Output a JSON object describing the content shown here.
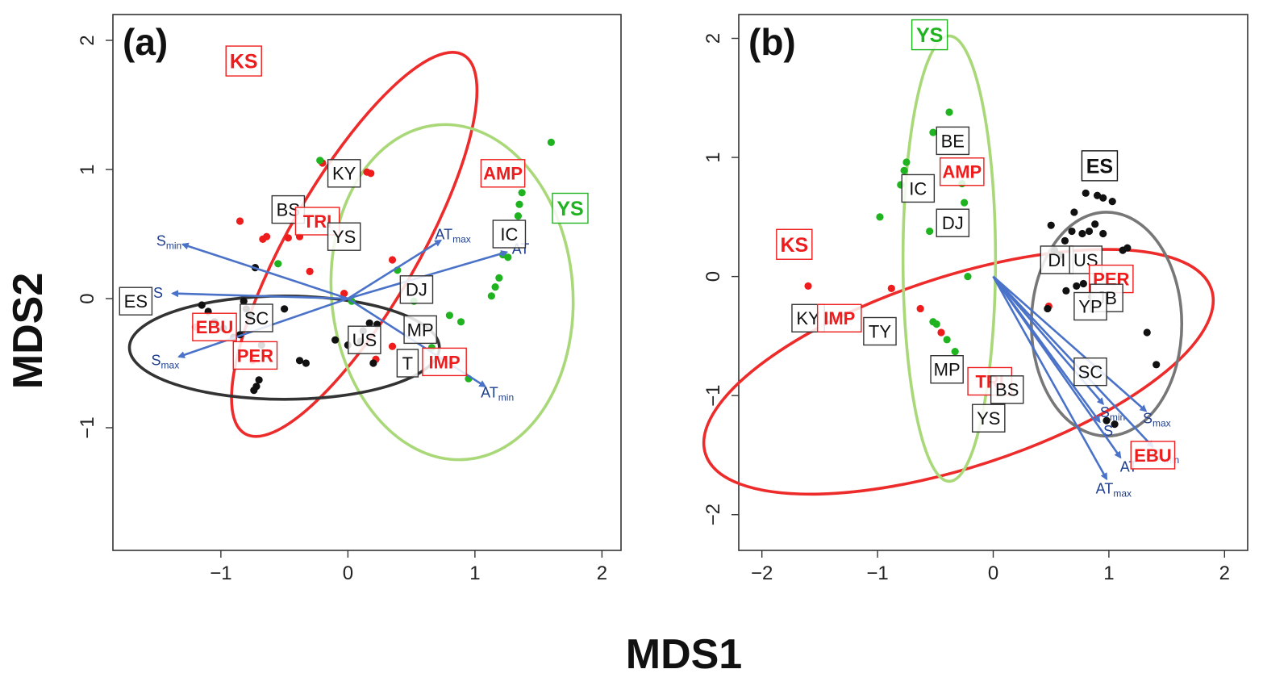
{
  "figure": {
    "xlabel": "MDS1",
    "ylabel": "MDS2"
  },
  "colors": {
    "site": "#111111",
    "fish": "#ee1c1c",
    "red_group": "#ee1c1c",
    "green_group": "#1fb31f",
    "black_group": "#111111",
    "ellipse_red": "#ee2b2b",
    "ellipse_green": "#a9d878",
    "ellipse_black": "#333333",
    "ellipse_gray": "#777777",
    "vector": "#4a72c8",
    "vector_text": "#1f3f8f"
  },
  "chart_data": [
    {
      "type": "scatter",
      "tag": "(a)",
      "xlim": [
        -1.85,
        2.15
      ],
      "ylim": [
        -1.95,
        2.2
      ],
      "xticks": [
        -1,
        0,
        1,
        2
      ],
      "yticks": [
        -1,
        0,
        1,
        2
      ],
      "xtick_labels": [
        "−1",
        "0",
        "1",
        "2"
      ],
      "ytick_labels": [
        "−1",
        "0",
        "1",
        "2"
      ],
      "ellipses": [
        {
          "name": "KS",
          "color": "ellipse_red",
          "cx": 0.05,
          "cy": 0.42,
          "rx": 1.72,
          "ry": 0.5,
          "angle_deg": -60
        },
        {
          "name": "YS",
          "color": "ellipse_green",
          "cx": 0.82,
          "cy": 0.05,
          "rx": 0.95,
          "ry": 1.3,
          "angle_deg": -5
        },
        {
          "name": "ES",
          "color": "ellipse_black",
          "cx": -0.5,
          "cy": -0.38,
          "rx": 1.22,
          "ry": 0.4,
          "angle_deg": 0
        }
      ],
      "points": [
        {
          "x": -0.85,
          "y": 0.6,
          "g": "red"
        },
        {
          "x": -0.67,
          "y": 0.46,
          "g": "red"
        },
        {
          "x": -0.64,
          "y": 0.48,
          "g": "red"
        },
        {
          "x": -0.47,
          "y": 0.47,
          "g": "red"
        },
        {
          "x": -0.38,
          "y": 0.48,
          "g": "red"
        },
        {
          "x": -0.3,
          "y": 0.21,
          "g": "red"
        },
        {
          "x": -0.2,
          "y": 1.05,
          "g": "red"
        },
        {
          "x": 0.15,
          "y": 0.98,
          "g": "red"
        },
        {
          "x": 0.18,
          "y": 0.97,
          "g": "red"
        },
        {
          "x": 0.35,
          "y": 0.3,
          "g": "red"
        },
        {
          "x": -0.03,
          "y": 0.04,
          "g": "red"
        },
        {
          "x": 0.35,
          "y": -0.37,
          "g": "red"
        },
        {
          "x": 0.22,
          "y": -0.47,
          "g": "red"
        },
        {
          "x": -1.2,
          "y": -0.22,
          "g": "red"
        },
        {
          "x": -0.75,
          "y": -0.48,
          "g": "red"
        },
        {
          "x": -0.22,
          "y": 1.07,
          "g": "green"
        },
        {
          "x": -0.55,
          "y": 0.27,
          "g": "green"
        },
        {
          "x": 0.03,
          "y": -0.02,
          "g": "green"
        },
        {
          "x": 0.39,
          "y": 0.22,
          "g": "green"
        },
        {
          "x": 0.52,
          "y": -0.02,
          "g": "green"
        },
        {
          "x": 0.66,
          "y": -0.38,
          "g": "green"
        },
        {
          "x": 0.8,
          "y": -0.13,
          "g": "green"
        },
        {
          "x": 0.89,
          "y": -0.18,
          "g": "green"
        },
        {
          "x": 0.95,
          "y": -0.62,
          "g": "green"
        },
        {
          "x": 1.13,
          "y": 0.02,
          "g": "green"
        },
        {
          "x": 1.16,
          "y": 0.09,
          "g": "green"
        },
        {
          "x": 1.19,
          "y": 0.16,
          "g": "green"
        },
        {
          "x": 1.22,
          "y": 0.34,
          "g": "green"
        },
        {
          "x": 1.26,
          "y": 0.32,
          "g": "green"
        },
        {
          "x": 1.34,
          "y": 0.64,
          "g": "green"
        },
        {
          "x": 1.35,
          "y": 0.73,
          "g": "green"
        },
        {
          "x": 1.37,
          "y": 0.82,
          "g": "green"
        },
        {
          "x": 1.6,
          "y": 1.21,
          "g": "green"
        },
        {
          "x": -1.15,
          "y": -0.05,
          "g": "black"
        },
        {
          "x": -1.1,
          "y": -0.1,
          "g": "black"
        },
        {
          "x": -1.05,
          "y": -0.18,
          "g": "black"
        },
        {
          "x": -0.98,
          "y": -0.23,
          "g": "black"
        },
        {
          "x": -0.9,
          "y": -0.3,
          "g": "black"
        },
        {
          "x": -0.85,
          "y": -0.28,
          "g": "black"
        },
        {
          "x": -0.82,
          "y": -0.02,
          "g": "black"
        },
        {
          "x": -0.8,
          "y": -0.08,
          "g": "black"
        },
        {
          "x": -0.77,
          "y": -0.14,
          "g": "black"
        },
        {
          "x": -0.73,
          "y": 0.24,
          "g": "black"
        },
        {
          "x": -0.68,
          "y": -0.36,
          "g": "black"
        },
        {
          "x": -0.7,
          "y": -0.63,
          "g": "black"
        },
        {
          "x": -0.72,
          "y": -0.68,
          "g": "black"
        },
        {
          "x": -0.74,
          "y": -0.71,
          "g": "black"
        },
        {
          "x": -0.5,
          "y": -0.08,
          "g": "black"
        },
        {
          "x": -0.38,
          "y": -0.48,
          "g": "black"
        },
        {
          "x": -0.33,
          "y": -0.5,
          "g": "black"
        },
        {
          "x": -0.1,
          "y": -0.32,
          "g": "black"
        },
        {
          "x": 0.0,
          "y": -0.36,
          "g": "black"
        },
        {
          "x": 0.1,
          "y": -0.33,
          "g": "black"
        },
        {
          "x": 0.17,
          "y": -0.19,
          "g": "black"
        },
        {
          "x": 0.23,
          "y": -0.2,
          "g": "black"
        },
        {
          "x": 0.2,
          "y": -0.5,
          "g": "black"
        },
        {
          "x": 0.12,
          "y": -0.25,
          "g": "black"
        }
      ],
      "labels": [
        {
          "text": "KS",
          "x": -0.82,
          "y": 1.84,
          "kind": "ellipse",
          "g": "red"
        },
        {
          "text": "YS",
          "x": 1.75,
          "y": 0.7,
          "kind": "ellipse",
          "g": "green"
        },
        {
          "text": "ES",
          "x": -1.67,
          "y": -0.02,
          "kind": "site",
          "g": "black"
        },
        {
          "text": "KY",
          "x": -0.03,
          "y": 0.97,
          "kind": "site",
          "g": "black"
        },
        {
          "text": "BS",
          "x": -0.47,
          "y": 0.69,
          "kind": "site",
          "g": "black"
        },
        {
          "text": "TRI",
          "x": -0.24,
          "y": 0.6,
          "kind": "fish",
          "g": "red"
        },
        {
          "text": "YS",
          "x": -0.03,
          "y": 0.48,
          "kind": "site",
          "g": "black"
        },
        {
          "text": "AMP",
          "x": 1.22,
          "y": 0.97,
          "kind": "fish",
          "g": "red"
        },
        {
          "text": "IC",
          "x": 1.27,
          "y": 0.5,
          "kind": "site",
          "g": "black"
        },
        {
          "text": "DJ",
          "x": 0.54,
          "y": 0.07,
          "kind": "site",
          "g": "black"
        },
        {
          "text": "SC",
          "x": -0.72,
          "y": -0.15,
          "kind": "site",
          "g": "black"
        },
        {
          "text": "EBU",
          "x": -1.05,
          "y": -0.22,
          "kind": "fish",
          "g": "red"
        },
        {
          "text": "US",
          "x": 0.13,
          "y": -0.32,
          "kind": "site",
          "g": "black"
        },
        {
          "text": "MP",
          "x": 0.57,
          "y": -0.24,
          "kind": "site",
          "g": "black"
        },
        {
          "text": "PER",
          "x": -0.73,
          "y": -0.44,
          "kind": "fish",
          "g": "red"
        },
        {
          "text": "T",
          "x": 0.47,
          "y": -0.5,
          "kind": "site",
          "g": "black"
        },
        {
          "text": "IMP",
          "x": 0.76,
          "y": -0.49,
          "kind": "fish",
          "g": "red"
        }
      ],
      "vectors": [
        {
          "label": "S",
          "sub": "min",
          "x": -1.3,
          "y": 0.42
        },
        {
          "label": "S",
          "sub": "",
          "x": -1.38,
          "y": 0.04
        },
        {
          "label": "S",
          "sub": "max",
          "x": -1.33,
          "y": -0.45
        },
        {
          "label": "AT",
          "sub": "max",
          "x": 0.73,
          "y": 0.45
        },
        {
          "label": "AT",
          "sub": "",
          "x": 1.25,
          "y": 0.36
        },
        {
          "label": "AT",
          "sub": "min",
          "x": 1.08,
          "y": -0.68
        }
      ]
    },
    {
      "type": "scatter",
      "tag": "(b)",
      "xlim": [
        -2.2,
        2.2
      ],
      "ylim": [
        -2.3,
        2.2
      ],
      "xticks": [
        -2,
        -1,
        0,
        1,
        2
      ],
      "yticks": [
        -2,
        -1,
        0,
        1,
        2
      ],
      "xtick_labels": [
        "−2",
        "−1",
        "0",
        "1",
        "2"
      ],
      "ytick_labels": [
        "−2",
        "−1",
        "0",
        "1",
        "2"
      ],
      "ellipses": [
        {
          "name": "KS",
          "color": "ellipse_red",
          "cx": -0.3,
          "cy": -0.8,
          "rx": 2.3,
          "ry": 0.8,
          "angle_deg": -18
        },
        {
          "name": "YS",
          "color": "ellipse_green",
          "cx": -0.38,
          "cy": 0.15,
          "rx": 0.4,
          "ry": 1.87,
          "angle_deg": 0
        },
        {
          "name": "ES",
          "color": "ellipse_gray",
          "cx": 0.98,
          "cy": -0.4,
          "rx": 0.65,
          "ry": 0.94,
          "angle_deg": 0
        }
      ],
      "points": [
        {
          "x": -1.6,
          "y": -0.08,
          "g": "red"
        },
        {
          "x": -0.88,
          "y": -0.1,
          "g": "red"
        },
        {
          "x": -0.63,
          "y": -0.27,
          "g": "red"
        },
        {
          "x": -0.45,
          "y": -0.47,
          "g": "red"
        },
        {
          "x": 0.48,
          "y": -0.25,
          "g": "red"
        },
        {
          "x": -0.38,
          "y": 1.38,
          "g": "green"
        },
        {
          "x": -0.52,
          "y": 1.21,
          "g": "green"
        },
        {
          "x": -0.75,
          "y": 0.96,
          "g": "green"
        },
        {
          "x": -0.77,
          "y": 0.89,
          "g": "green"
        },
        {
          "x": -0.8,
          "y": 0.77,
          "g": "green"
        },
        {
          "x": -0.27,
          "y": 0.78,
          "g": "green"
        },
        {
          "x": -0.25,
          "y": 0.62,
          "g": "green"
        },
        {
          "x": -0.98,
          "y": 0.5,
          "g": "green"
        },
        {
          "x": -0.55,
          "y": 0.38,
          "g": "green"
        },
        {
          "x": -0.22,
          "y": 0.0,
          "g": "green"
        },
        {
          "x": -0.52,
          "y": -0.38,
          "g": "green"
        },
        {
          "x": -0.49,
          "y": -0.4,
          "g": "green"
        },
        {
          "x": -0.4,
          "y": -0.53,
          "g": "green"
        },
        {
          "x": -0.33,
          "y": -0.63,
          "g": "green"
        },
        {
          "x": 0.8,
          "y": 0.7,
          "g": "black"
        },
        {
          "x": 0.9,
          "y": 0.68,
          "g": "black"
        },
        {
          "x": 0.95,
          "y": 0.66,
          "g": "black"
        },
        {
          "x": 1.03,
          "y": 0.63,
          "g": "black"
        },
        {
          "x": 0.7,
          "y": 0.54,
          "g": "black"
        },
        {
          "x": 0.5,
          "y": 0.43,
          "g": "black"
        },
        {
          "x": 0.88,
          "y": 0.44,
          "g": "black"
        },
        {
          "x": 0.77,
          "y": 0.36,
          "g": "black"
        },
        {
          "x": 0.83,
          "y": 0.38,
          "g": "black"
        },
        {
          "x": 0.95,
          "y": 0.36,
          "g": "black"
        },
        {
          "x": 0.68,
          "y": 0.38,
          "g": "black"
        },
        {
          "x": 0.62,
          "y": 0.3,
          "g": "black"
        },
        {
          "x": 1.12,
          "y": 0.22,
          "g": "black"
        },
        {
          "x": 1.16,
          "y": 0.24,
          "g": "black"
        },
        {
          "x": 0.53,
          "y": 0.22,
          "g": "black"
        },
        {
          "x": 0.58,
          "y": 0.18,
          "g": "black"
        },
        {
          "x": 0.72,
          "y": -0.08,
          "g": "black"
        },
        {
          "x": 0.78,
          "y": -0.06,
          "g": "black"
        },
        {
          "x": 0.63,
          "y": -0.12,
          "g": "black"
        },
        {
          "x": 0.85,
          "y": -0.17,
          "g": "black"
        },
        {
          "x": 1.05,
          "y": -0.1,
          "g": "black"
        },
        {
          "x": 0.47,
          "y": -0.27,
          "g": "black"
        },
        {
          "x": 1.33,
          "y": -0.47,
          "g": "black"
        },
        {
          "x": 1.41,
          "y": -0.74,
          "g": "black"
        },
        {
          "x": 0.98,
          "y": -1.21,
          "g": "black"
        },
        {
          "x": 1.05,
          "y": -1.24,
          "g": "black"
        }
      ],
      "labels": [
        {
          "text": "YS",
          "x": -0.55,
          "y": 2.03,
          "kind": "ellipse",
          "g": "green"
        },
        {
          "text": "KS",
          "x": -1.72,
          "y": 0.27,
          "kind": "ellipse",
          "g": "red"
        },
        {
          "text": "ES",
          "x": 0.92,
          "y": 0.93,
          "kind": "ellipse",
          "g": "black"
        },
        {
          "text": "BE",
          "x": -0.35,
          "y": 1.14,
          "kind": "site",
          "g": "black"
        },
        {
          "text": "AMP",
          "x": -0.27,
          "y": 0.88,
          "kind": "fish",
          "g": "red"
        },
        {
          "text": "IC",
          "x": -0.65,
          "y": 0.74,
          "kind": "site",
          "g": "black"
        },
        {
          "text": "DJ",
          "x": -0.35,
          "y": 0.45,
          "kind": "site",
          "g": "black"
        },
        {
          "text": "DI",
          "x": 0.55,
          "y": 0.14,
          "kind": "site",
          "g": "black"
        },
        {
          "text": "US",
          "x": 0.8,
          "y": 0.14,
          "kind": "site",
          "g": "black"
        },
        {
          "text": "PER",
          "x": 1.02,
          "y": -0.02,
          "kind": "fish",
          "g": "red"
        },
        {
          "text": "JB",
          "x": 0.98,
          "y": -0.18,
          "kind": "site",
          "g": "black"
        },
        {
          "text": "YP",
          "x": 0.84,
          "y": -0.25,
          "kind": "site",
          "g": "black"
        },
        {
          "text": "KY",
          "x": -1.6,
          "y": -0.35,
          "kind": "site",
          "g": "black"
        },
        {
          "text": "IMP",
          "x": -1.33,
          "y": -0.35,
          "kind": "fish",
          "g": "red"
        },
        {
          "text": "TY",
          "x": -0.98,
          "y": -0.46,
          "kind": "site",
          "g": "black"
        },
        {
          "text": "MP",
          "x": -0.4,
          "y": -0.78,
          "kind": "site",
          "g": "black"
        },
        {
          "text": "TRI",
          "x": -0.03,
          "y": -0.88,
          "kind": "fish",
          "g": "red"
        },
        {
          "text": "BS",
          "x": 0.12,
          "y": -0.95,
          "kind": "site",
          "g": "black"
        },
        {
          "text": "YS",
          "x": -0.04,
          "y": -1.19,
          "kind": "site",
          "g": "black"
        },
        {
          "text": "SC",
          "x": 0.84,
          "y": -0.8,
          "kind": "site",
          "g": "black"
        },
        {
          "text": "EBU",
          "x": 1.38,
          "y": -1.5,
          "kind": "fish",
          "g": "red"
        }
      ],
      "vectors": [
        {
          "label": "S",
          "sub": "min",
          "x": 0.95,
          "y": -1.07
        },
        {
          "label": "S",
          "sub": "",
          "x": 0.92,
          "y": -1.22
        },
        {
          "label": "S",
          "sub": "max",
          "x": 1.32,
          "y": -1.13
        },
        {
          "label": "AT",
          "sub": "",
          "x": 1.1,
          "y": -1.52
        },
        {
          "label": "AT",
          "sub": "min",
          "x": 1.38,
          "y": -1.43
        },
        {
          "label": "AT",
          "sub": "max",
          "x": 0.98,
          "y": -1.7
        }
      ]
    }
  ]
}
